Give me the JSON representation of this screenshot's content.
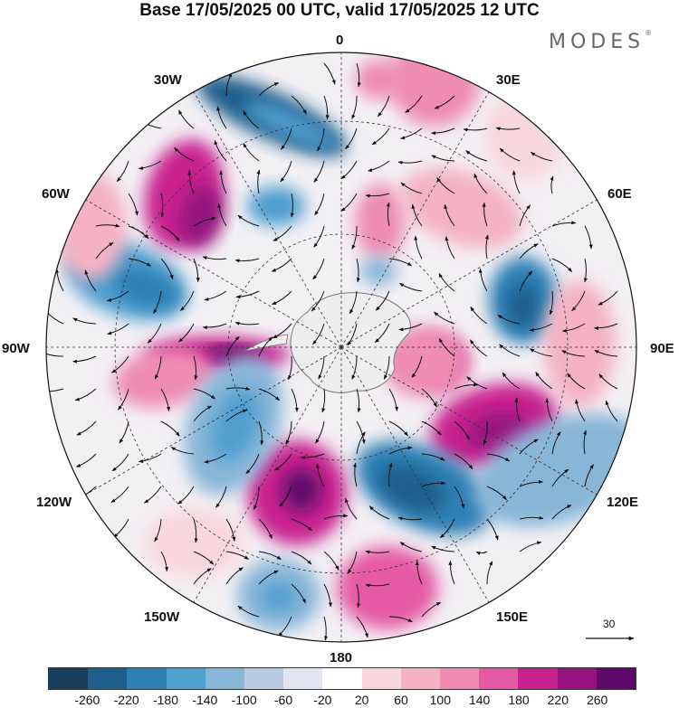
{
  "title": "Base 17/05/2025 00 UTC, valid 17/05/2025 12 UTC",
  "logo": {
    "text": "MODES",
    "mark": "®"
  },
  "longitude_labels": {
    "lon_0": "0",
    "lon_30e": "30E",
    "lon_60e": "60E",
    "lon_90e": "90E",
    "lon_120e": "120E",
    "lon_150e": "150E",
    "lon_180": "180",
    "lon_150w": "150W",
    "lon_120w": "120W",
    "lon_90w": "90W",
    "lon_60w": "60W",
    "lon_30w": "30W"
  },
  "vector_scale": {
    "value": "30"
  },
  "colorbar": {
    "colors": [
      "#18405e",
      "#1f5f8c",
      "#2f80b5",
      "#4f9fcf",
      "#87b6d8",
      "#b9cbe2",
      "#e3e5f0",
      "#ffffff",
      "#f9d7de",
      "#f4b2c4",
      "#ee8cb2",
      "#e55aa4",
      "#c9228f",
      "#95127f",
      "#5e0a6b"
    ],
    "ticks": [
      "-260",
      "-220",
      "-180",
      "-140",
      "-100",
      "-60",
      "-20",
      "20",
      "60",
      "100",
      "140",
      "180",
      "220",
      "260"
    ]
  },
  "colors": {
    "antarctica": "#eeeeee",
    "coast": "#777777",
    "grid": "#333333"
  }
}
